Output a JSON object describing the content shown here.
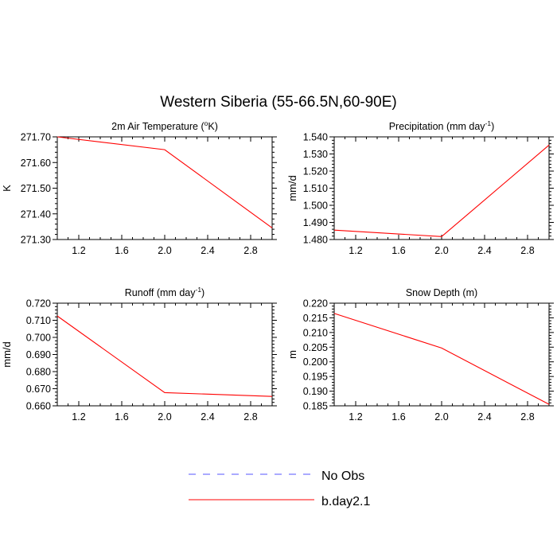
{
  "figure": {
    "title": "Western Siberia (55-66.5N,60-90E)"
  },
  "legend": {
    "placement": "bottom-center",
    "entries": [
      {
        "name": "No Obs",
        "color": "#5555ff",
        "dash": "dashed"
      },
      {
        "name": "b.day2.1",
        "color": "#ff0000",
        "dash": "solid"
      }
    ]
  },
  "chart_data": [
    {
      "type": "line",
      "title_main": "2m Air Temperature (",
      "title_sup": "o",
      "title_after": "K)",
      "ylabel": "K",
      "xlabel": "",
      "xlim": [
        1.0,
        3.0
      ],
      "ylim": [
        271.3,
        271.7
      ],
      "xticks": [
        "1.2",
        "1.6",
        "2.0",
        "2.4",
        "2.8"
      ],
      "yticks": [
        "271.30",
        "271.40",
        "271.50",
        "271.60",
        "271.70"
      ],
      "grid": false,
      "series": [
        {
          "name": "b.day2.1",
          "color": "#ff0000",
          "x": [
            1.0,
            2.0,
            3.0
          ],
          "y": [
            271.7,
            271.65,
            271.345
          ]
        }
      ]
    },
    {
      "type": "line",
      "title_main": "Precipitation (mm day",
      "title_sup": "-1",
      "title_after": ")",
      "ylabel": "mm/d",
      "xlabel": "",
      "xlim": [
        1.0,
        3.0
      ],
      "ylim": [
        1.48,
        1.54
      ],
      "xticks": [
        "1.2",
        "1.6",
        "2.0",
        "2.4",
        "2.8"
      ],
      "yticks": [
        "1.480",
        "1.490",
        "1.500",
        "1.510",
        "1.520",
        "1.530",
        "1.540"
      ],
      "grid": false,
      "series": [
        {
          "name": "b.day2.1",
          "color": "#ff0000",
          "x": [
            1.0,
            2.0,
            3.0
          ],
          "y": [
            1.4855,
            1.4817,
            1.5352
          ]
        }
      ]
    },
    {
      "type": "line",
      "title_main": "Runoff (mm day",
      "title_sup": "-1",
      "title_after": ")",
      "ylabel": "mm/d",
      "xlabel": "",
      "xlim": [
        1.0,
        3.0
      ],
      "ylim": [
        0.66,
        0.72
      ],
      "xticks": [
        "1.2",
        "1.6",
        "2.0",
        "2.4",
        "2.8"
      ],
      "yticks": [
        "0.660",
        "0.670",
        "0.680",
        "0.690",
        "0.700",
        "0.710",
        "0.720"
      ],
      "grid": false,
      "series": [
        {
          "name": "b.day2.1",
          "color": "#ff0000",
          "x": [
            1.0,
            2.0,
            3.0
          ],
          "y": [
            0.7125,
            0.6677,
            0.6655
          ]
        }
      ]
    },
    {
      "type": "line",
      "title_main": "Snow Depth (m)",
      "title_sup": "",
      "title_after": "",
      "ylabel": "m",
      "xlabel": "",
      "xlim": [
        1.0,
        3.0
      ],
      "ylim": [
        0.185,
        0.22
      ],
      "xticks": [
        "1.2",
        "1.6",
        "2.0",
        "2.4",
        "2.8"
      ],
      "yticks": [
        "0.185",
        "0.190",
        "0.195",
        "0.200",
        "0.205",
        "0.210",
        "0.215",
        "0.220"
      ],
      "grid": false,
      "series": [
        {
          "name": "b.day2.1",
          "color": "#ff0000",
          "x": [
            1.0,
            2.0,
            3.0
          ],
          "y": [
            0.2165,
            0.2047,
            0.1855
          ]
        }
      ]
    }
  ]
}
